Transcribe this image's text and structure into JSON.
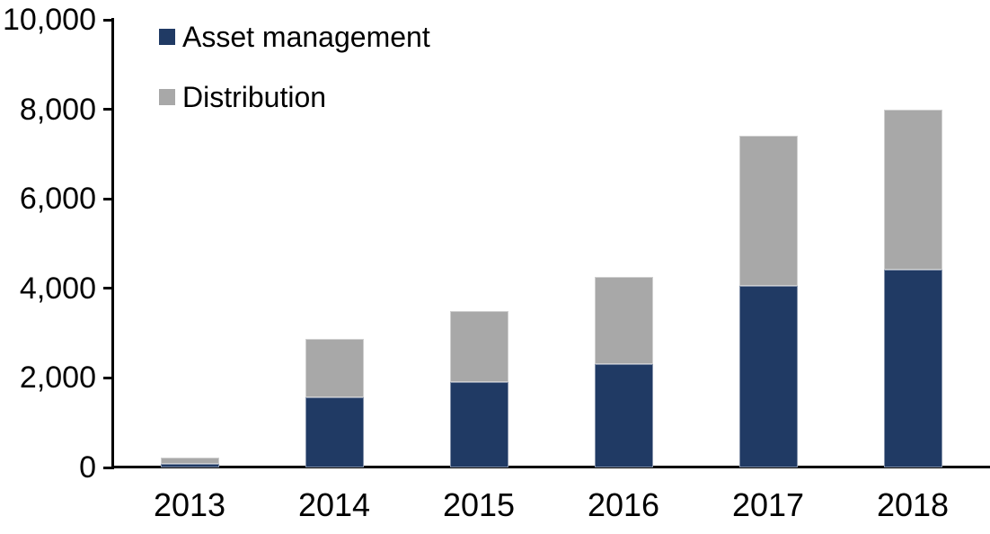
{
  "chart_data": {
    "type": "bar",
    "stacked": true,
    "title": "",
    "xlabel": "",
    "ylabel": "",
    "categories": [
      "2013",
      "2014",
      "2015",
      "2016",
      "2017",
      "2018"
    ],
    "series": [
      {
        "name": "Asset management",
        "color": "#203A64",
        "values": [
          90,
          1560,
          1900,
          2310,
          4050,
          4420
        ]
      },
      {
        "name": "Distribution",
        "color": "#A8A8A8",
        "values": [
          130,
          1320,
          1600,
          1940,
          3350,
          3580
        ]
      }
    ],
    "totals": [
      220,
      2880,
      3500,
      4250,
      7400,
      8000
    ],
    "ylim": [
      0,
      10000
    ],
    "yticks": [
      0,
      2000,
      4000,
      6000,
      8000,
      10000
    ],
    "ytick_labels": [
      "0",
      "2,000",
      "4,000",
      "6,000",
      "8,000",
      "10,000"
    ],
    "grid": false,
    "legend_position": "top-left",
    "axis_color": "#000000",
    "text_color": "#000000"
  }
}
